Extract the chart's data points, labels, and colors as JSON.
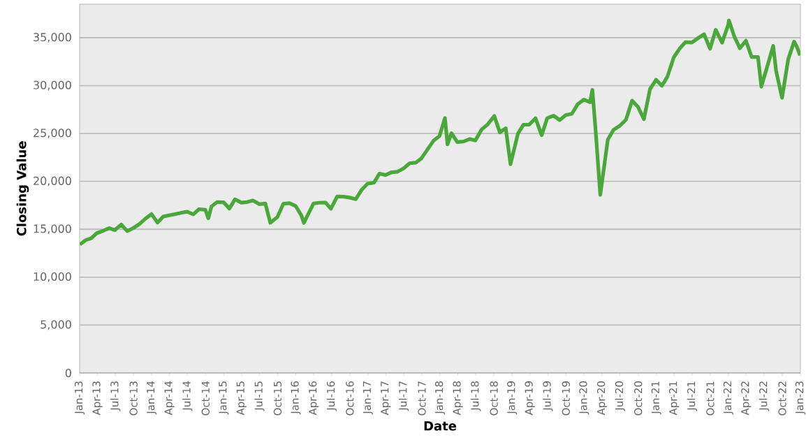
{
  "chart_data": {
    "type": "line",
    "xlabel": "Date",
    "ylabel": "Closing Value",
    "grid": "y",
    "marker": "none",
    "line_style": "solid",
    "xlim": [
      "2013-01-01",
      "2023-01-01"
    ],
    "ylim": [
      0,
      38500
    ],
    "yticks": [
      0,
      {
        "value": 5000,
        "label": "5,000"
      },
      {
        "value": 10000,
        "label": "10,000"
      },
      {
        "value": 15000,
        "label": "15,000"
      },
      {
        "value": 20000,
        "label": "20,000"
      },
      {
        "value": 25000,
        "label": "25,000"
      },
      {
        "value": 30000,
        "label": "30,000"
      },
      {
        "value": 35000,
        "label": "35,000"
      }
    ],
    "xticks": [
      {
        "value": "2013-01-01",
        "label": "Jan-13"
      },
      {
        "value": "2013-04-01",
        "label": "Apr-13"
      },
      {
        "value": "2013-07-01",
        "label": "Jul-13"
      },
      {
        "value": "2013-10-01",
        "label": "Oct-13"
      },
      {
        "value": "2014-01-01",
        "label": "Jan-14"
      },
      {
        "value": "2014-04-01",
        "label": "Apr-14"
      },
      {
        "value": "2014-07-01",
        "label": "Jul-14"
      },
      {
        "value": "2014-10-01",
        "label": "Oct-14"
      },
      {
        "value": "2015-01-01",
        "label": "Jan-15"
      },
      {
        "value": "2015-04-01",
        "label": "Apr-15"
      },
      {
        "value": "2015-07-01",
        "label": "Jul-15"
      },
      {
        "value": "2015-10-01",
        "label": "Oct-15"
      },
      {
        "value": "2016-01-01",
        "label": "Jan-16"
      },
      {
        "value": "2016-04-01",
        "label": "Apr-16"
      },
      {
        "value": "2016-07-01",
        "label": "Jul-16"
      },
      {
        "value": "2016-10-01",
        "label": "Oct-16"
      },
      {
        "value": "2017-01-01",
        "label": "Jan-17"
      },
      {
        "value": "2017-04-01",
        "label": "Apr-17"
      },
      {
        "value": "2017-07-01",
        "label": "Jul-17"
      },
      {
        "value": "2017-10-01",
        "label": "Oct-17"
      },
      {
        "value": "2018-01-01",
        "label": "Jan-18"
      },
      {
        "value": "2018-04-01",
        "label": "Apr-18"
      },
      {
        "value": "2018-07-01",
        "label": "Jul-18"
      },
      {
        "value": "2018-10-01",
        "label": "Oct-18"
      },
      {
        "value": "2019-01-01",
        "label": "Jan-19"
      },
      {
        "value": "2019-04-01",
        "label": "Apr-19"
      },
      {
        "value": "2019-07-01",
        "label": "Jul-19"
      },
      {
        "value": "2019-10-01",
        "label": "Oct-19"
      },
      {
        "value": "2020-01-01",
        "label": "Jan-20"
      },
      {
        "value": "2020-04-01",
        "label": "Apr-20"
      },
      {
        "value": "2020-07-01",
        "label": "Jul-20"
      },
      {
        "value": "2020-10-01",
        "label": "Oct-20"
      },
      {
        "value": "2021-01-01",
        "label": "Jan-21"
      },
      {
        "value": "2021-04-01",
        "label": "Apr-21"
      },
      {
        "value": "2021-07-01",
        "label": "Jul-21"
      },
      {
        "value": "2021-10-01",
        "label": "Oct-21"
      },
      {
        "value": "2022-01-01",
        "label": "Jan-22"
      },
      {
        "value": "2022-04-01",
        "label": "Apr-22"
      },
      {
        "value": "2022-07-01",
        "label": "Jul-22"
      },
      {
        "value": "2022-10-01",
        "label": "Oct-22"
      },
      {
        "value": "2023-01-01",
        "label": "Jan-23"
      }
    ],
    "series": [
      {
        "color": "#4aa83a",
        "x": [
          "2013-01-02",
          "2013-01-31",
          "2013-02-28",
          "2013-03-28",
          "2013-04-30",
          "2013-05-31",
          "2013-06-28",
          "2013-07-31",
          "2013-08-30",
          "2013-09-30",
          "2013-10-31",
          "2013-11-29",
          "2013-12-31",
          "2014-01-31",
          "2014-02-28",
          "2014-03-31",
          "2014-04-30",
          "2014-05-30",
          "2014-06-30",
          "2014-07-31",
          "2014-08-29",
          "2014-09-30",
          "2014-10-15",
          "2014-10-31",
          "2014-11-28",
          "2014-12-31",
          "2015-01-30",
          "2015-02-27",
          "2015-03-31",
          "2015-04-30",
          "2015-05-29",
          "2015-06-30",
          "2015-07-31",
          "2015-08-25",
          "2015-09-30",
          "2015-10-30",
          "2015-11-30",
          "2015-12-31",
          "2016-01-29",
          "2016-02-11",
          "2016-03-31",
          "2016-04-29",
          "2016-05-31",
          "2016-06-27",
          "2016-07-29",
          "2016-08-31",
          "2016-09-30",
          "2016-10-31",
          "2016-11-30",
          "2016-12-30",
          "2017-01-31",
          "2017-02-28",
          "2017-03-31",
          "2017-04-28",
          "2017-05-31",
          "2017-06-30",
          "2017-07-31",
          "2017-08-31",
          "2017-09-29",
          "2017-10-31",
          "2017-11-30",
          "2017-12-29",
          "2018-01-26",
          "2018-02-08",
          "2018-02-28",
          "2018-03-29",
          "2018-04-30",
          "2018-05-31",
          "2018-06-29",
          "2018-07-31",
          "2018-08-31",
          "2018-10-03",
          "2018-10-31",
          "2018-11-30",
          "2018-12-24",
          "2019-01-31",
          "2019-02-28",
          "2019-03-29",
          "2019-04-30",
          "2019-05-31",
          "2019-06-28",
          "2019-07-31",
          "2019-08-30",
          "2019-09-30",
          "2019-10-31",
          "2019-11-29",
          "2019-12-31",
          "2020-01-31",
          "2020-02-12",
          "2020-02-28",
          "2020-03-23",
          "2020-04-30",
          "2020-05-29",
          "2020-06-30",
          "2020-07-31",
          "2020-08-31",
          "2020-09-30",
          "2020-10-30",
          "2020-11-30",
          "2020-12-31",
          "2021-01-29",
          "2021-02-26",
          "2021-03-31",
          "2021-04-30",
          "2021-05-28",
          "2021-06-30",
          "2021-07-30",
          "2021-08-31",
          "2021-09-30",
          "2021-10-29",
          "2021-11-30",
          "2021-12-31",
          "2022-01-04",
          "2022-01-31",
          "2022-02-28",
          "2022-03-31",
          "2022-04-29",
          "2022-05-31",
          "2022-06-17",
          "2022-07-29",
          "2022-08-16",
          "2022-08-31",
          "2022-09-30",
          "2022-10-31",
          "2022-11-30",
          "2022-12-13",
          "2022-12-30"
        ],
        "values": [
          13400,
          13860,
          14050,
          14580,
          14840,
          15120,
          14910,
          15500,
          14810,
          15130,
          15550,
          16090,
          16580,
          15700,
          16320,
          16460,
          16580,
          16720,
          16830,
          16560,
          17100,
          17040,
          16140,
          17390,
          17830,
          17820,
          17160,
          18130,
          17780,
          17840,
          18010,
          17620,
          17690,
          15670,
          16280,
          17660,
          17720,
          17430,
          16470,
          15660,
          17690,
          17770,
          17790,
          17140,
          18430,
          18400,
          18310,
          18140,
          19120,
          19760,
          19860,
          20810,
          20660,
          20940,
          21010,
          21350,
          21890,
          21950,
          22410,
          23380,
          24270,
          24720,
          26620,
          23860,
          25030,
          24100,
          24160,
          24420,
          24270,
          25420,
          25960,
          26830,
          25120,
          25540,
          21790,
          25000,
          25920,
          25930,
          26590,
          24820,
          26600,
          26860,
          26400,
          26920,
          27050,
          28050,
          28540,
          28260,
          29550,
          25410,
          18590,
          24350,
          25380,
          25810,
          26430,
          28430,
          27780,
          26500,
          29640,
          30610,
          29980,
          30930,
          32980,
          33880,
          34530,
          34500,
          34940,
          35360,
          33840,
          35820,
          34480,
          36340,
          36800,
          35130,
          33890,
          34680,
          32980,
          32990,
          29890,
          32850,
          34150,
          31510,
          28730,
          32730,
          34590,
          34110,
          33150
        ]
      }
    ]
  }
}
